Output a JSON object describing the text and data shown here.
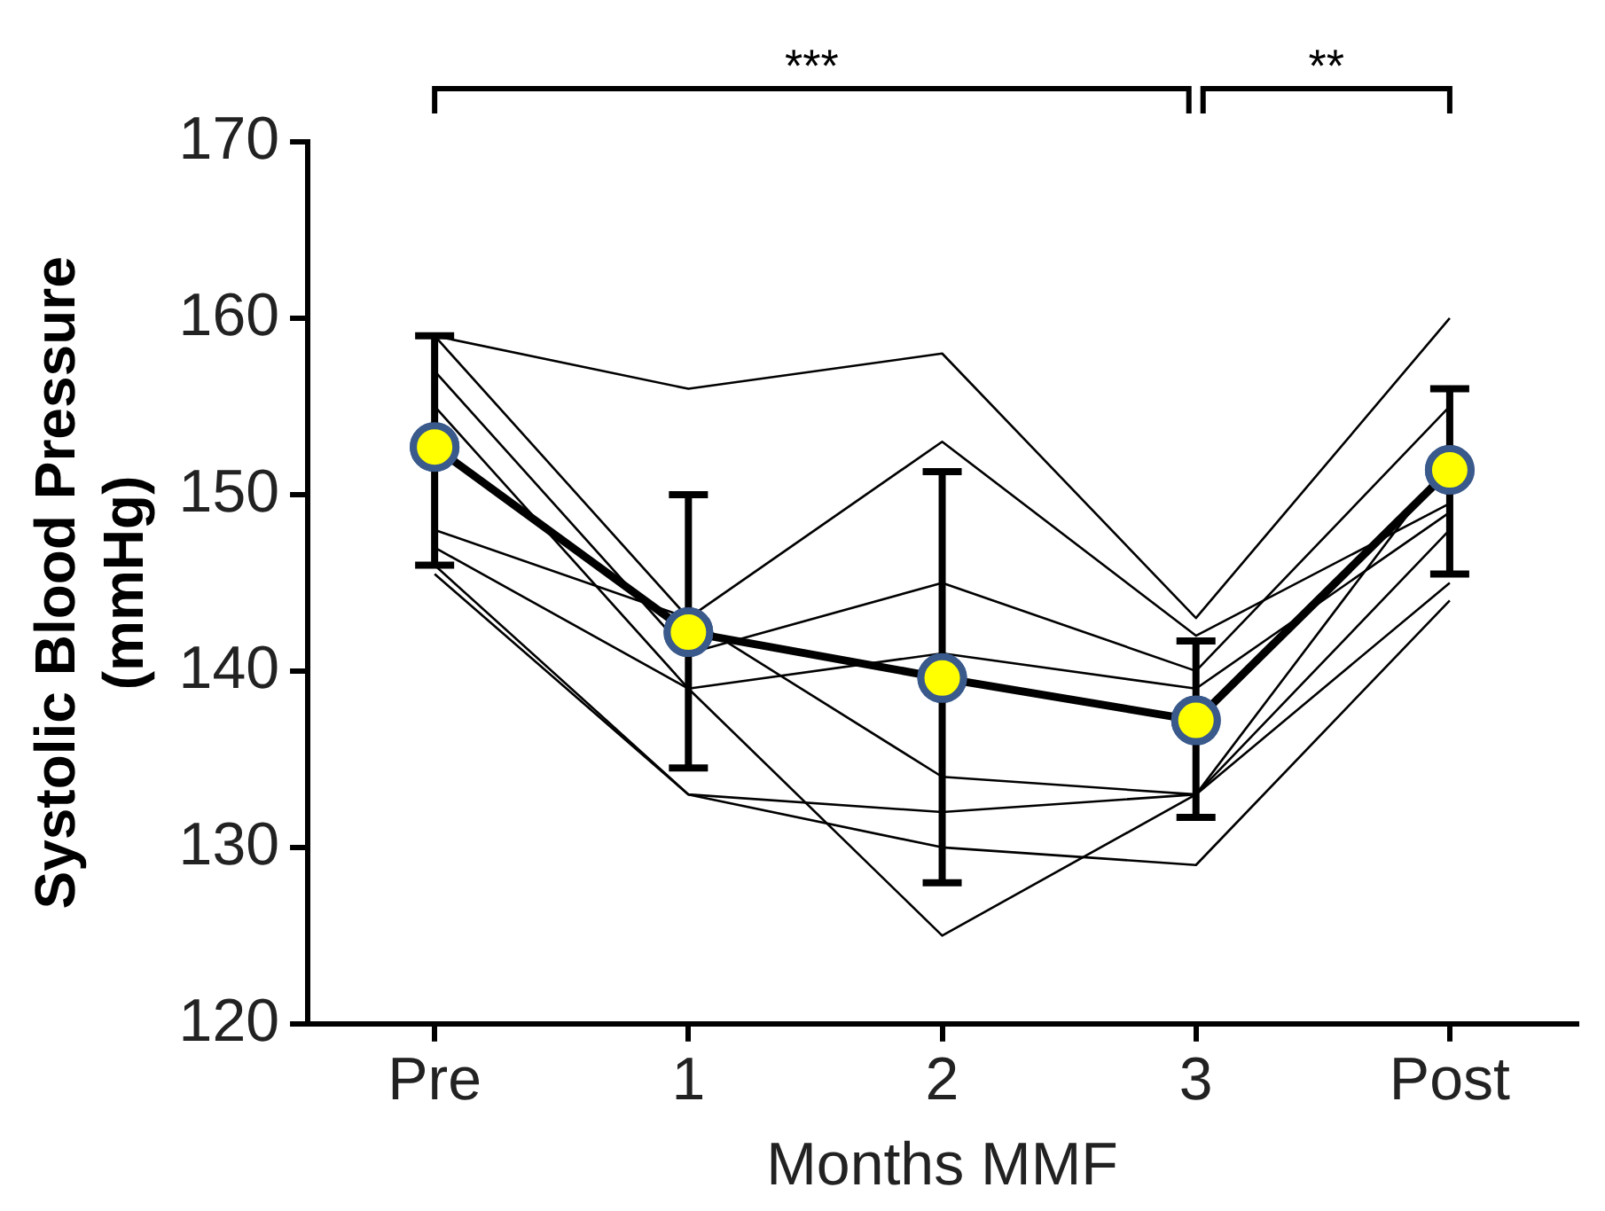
{
  "chart_data": {
    "type": "line",
    "xlabel": "Months MMF",
    "ylabel": "Systolic Blood Pressure (mmHg)",
    "categories": [
      "Pre",
      "1",
      "2",
      "3",
      "Post"
    ],
    "ylim": [
      120,
      170
    ],
    "yticks": [
      120,
      130,
      140,
      150,
      160,
      170
    ],
    "grid": false,
    "legend": false,
    "annotations": [
      "***",
      "**"
    ],
    "series": [
      {
        "color": "#000000",
        "values": [
          159,
          156,
          158,
          143,
          160
        ],
        "marker": "none"
      },
      {
        "color": "#000000",
        "values": [
          159,
          143,
          153,
          142,
          149.5
        ],
        "marker": "none"
      },
      {
        "color": "#000000",
        "values": [
          157,
          141,
          145,
          140,
          155
        ],
        "marker": "none"
      },
      {
        "color": "#000000",
        "values": [
          155,
          139,
          141,
          139,
          149
        ],
        "marker": "none"
      },
      {
        "color": "#000000",
        "values": [
          148,
          143,
          134,
          133,
          152
        ],
        "marker": "none"
      },
      {
        "color": "#000000",
        "values": [
          146,
          133,
          132,
          133,
          148
        ],
        "marker": "none"
      },
      {
        "color": "#000000",
        "values": [
          145.5,
          133,
          130,
          129,
          144
        ],
        "marker": "none"
      },
      {
        "color": "#000000",
        "values": [
          147,
          139,
          125,
          133,
          145
        ],
        "marker": "none"
      },
      {
        "color": "#000000",
        "values": [
          152.7,
          142.2,
          139.6,
          137.2,
          151.4
        ],
        "marker": "circle",
        "errors": [
          [
            146,
            159
          ],
          [
            134.5,
            150
          ],
          [
            128,
            151.3
          ],
          [
            131.7,
            141.7
          ],
          [
            145.5,
            156
          ]
        ]
      }
    ]
  }
}
